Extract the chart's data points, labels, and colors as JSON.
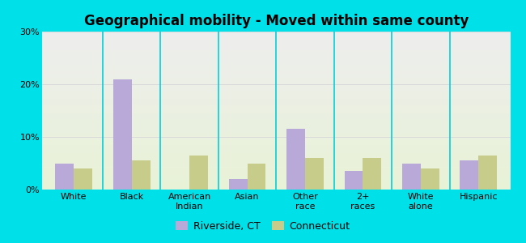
{
  "title": "Geographical mobility - Moved within same county",
  "categories": [
    "White",
    "Black",
    "American\nIndian",
    "Asian",
    "Other\nrace",
    "2+\nraces",
    "White\nalone",
    "Hispanic"
  ],
  "riverside": [
    5.0,
    21.0,
    0.0,
    2.0,
    11.5,
    3.5,
    5.0,
    5.5
  ],
  "connecticut": [
    4.0,
    5.5,
    6.5,
    5.0,
    6.0,
    6.0,
    4.0,
    6.5
  ],
  "riverside_color": "#b8a9d9",
  "connecticut_color": "#c8cc8a",
  "ylim": [
    0,
    30
  ],
  "yticks": [
    0,
    10,
    20,
    30
  ],
  "ytick_labels": [
    "0%",
    "10%",
    "20%",
    "30%"
  ],
  "legend_riverside": "Riverside, CT",
  "legend_connecticut": "Connecticut",
  "outer_color": "#00e0e8",
  "bar_width": 0.32,
  "title_fontsize": 12,
  "tick_fontsize": 8,
  "legend_fontsize": 9,
  "separator_color": "#00d0d8",
  "gridline_color": "#d8d8d8"
}
